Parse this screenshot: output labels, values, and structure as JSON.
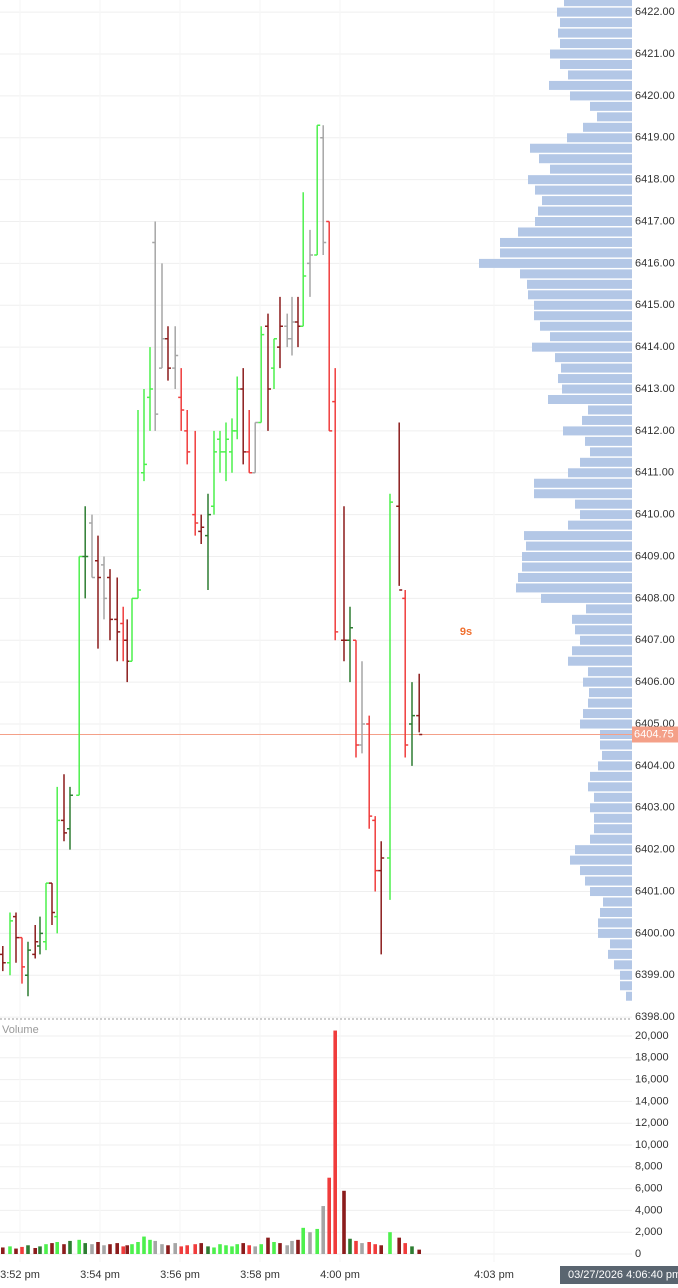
{
  "chart_data": {
    "type": "ohlc",
    "xlim": [
      -0.5,
      15.3
    ],
    "xticks": [
      {
        "value": 0,
        "label": "3:52 pm"
      },
      {
        "value": 2,
        "label": "3:54 pm"
      },
      {
        "value": 4,
        "label": "3:56 pm"
      },
      {
        "value": 6,
        "label": "3:58 pm"
      },
      {
        "value": 8,
        "label": "4:00 pm"
      },
      {
        "value": 11.85,
        "label": "4:03 pm"
      }
    ],
    "ylim": [
      6397.98,
      6422.29
    ],
    "yticks": [
      {
        "value": 6398,
        "label": "6398.00"
      },
      {
        "value": 6399,
        "label": "6399.00"
      },
      {
        "value": 6400,
        "label": "6400.00"
      },
      {
        "value": 6401,
        "label": "6401.00"
      },
      {
        "value": 6402,
        "label": "6402.00"
      },
      {
        "value": 6403,
        "label": "6403.00"
      },
      {
        "value": 6404,
        "label": "6404.00"
      },
      {
        "value": 6405,
        "label": "6405.00"
      },
      {
        "value": 6406,
        "label": "6406.00"
      },
      {
        "value": 6407,
        "label": "6407.00"
      },
      {
        "value": 6408,
        "label": "6408.00"
      },
      {
        "value": 6409,
        "label": "6409.00"
      },
      {
        "value": 6410,
        "label": "6410.00"
      },
      {
        "value": 6411,
        "label": "6411.00"
      },
      {
        "value": 6412,
        "label": "6412.00"
      },
      {
        "value": 6413,
        "label": "6413.00"
      },
      {
        "value": 6414,
        "label": "6414.00"
      },
      {
        "value": 6415,
        "label": "6415.00"
      },
      {
        "value": 6416,
        "label": "6416.00"
      },
      {
        "value": 6417,
        "label": "6417.00"
      },
      {
        "value": 6418,
        "label": "6418.00"
      },
      {
        "value": 6419,
        "label": "6419.00"
      },
      {
        "value": 6420,
        "label": "6420.00"
      },
      {
        "value": 6421,
        "label": "6421.00"
      },
      {
        "value": 6422,
        "label": "6422.00"
      }
    ],
    "grid": true,
    "last_price": 6404.75,
    "last_price_color": "#f4a088",
    "countdown": "9s",
    "cursor_time": "03/27/2026 4:06:40 pm",
    "bars": {
      "x": [
        -0.43,
        -0.25,
        -0.1,
        0.05,
        0.2,
        0.38,
        0.5,
        0.65,
        0.8,
        0.93,
        1.1,
        1.25,
        1.48,
        1.63,
        1.8,
        1.95,
        2.1,
        2.25,
        2.43,
        2.58,
        2.68,
        2.8,
        2.95,
        3.1,
        3.25,
        3.38,
        3.55,
        3.7,
        3.88,
        4.03,
        4.18,
        4.38,
        4.53,
        4.7,
        4.85,
        5,
        5.15,
        5.3,
        5.43,
        5.58,
        5.73,
        5.88,
        6.03,
        6.2,
        6.35,
        6.5,
        6.68,
        6.8,
        6.95,
        7.08,
        7.25,
        7.43,
        7.58,
        7.73,
        7.88,
        8.1,
        8.25,
        8.4,
        8.55,
        8.73,
        8.88,
        9.03,
        9.25,
        9.48,
        9.63,
        9.8,
        9.98
      ],
      "open": [
        6399.5,
        6399.3,
        6400.4,
        6399.9,
        6399.0,
        6399.5,
        6399.7,
        6399.8,
        6401.2,
        6400.4,
        6402.7,
        6402.5,
        6403.3,
        6409.0,
        6409.8,
        6408.9,
        6408.8,
        6408.5,
        6407.5,
        6407.4,
        6407.0,
        6406.5,
        6408.0,
        6411.0,
        6412.8,
        6416.5,
        6413.5,
        6414.2,
        6413.5,
        6412.8,
        6412.0,
        6410.0,
        6409.6,
        6409.5,
        6410.2,
        6411.8,
        6411.5,
        6411.5,
        6412.0,
        6413.0,
        6411.5,
        6411.0,
        6412.2,
        6414.5,
        6413.5,
        6414.0,
        6414.5,
        6414.2,
        6414.6,
        6414.5,
        6416.0,
        6416.2,
        6419.0,
        6417.0,
        6412.7,
        6407.0,
        6407.0,
        6407.0,
        6404.5,
        6405.0,
        6402.7,
        6401.5,
        6401.8,
        6410.2,
        6408.0,
        6405.0,
        6405.2
      ],
      "high": [
        6399.7,
        6400.5,
        6400.5,
        6399.9,
        6399.8,
        6400.2,
        6400.4,
        6401.2,
        6401.2,
        6403.5,
        6403.8,
        6403.5,
        6409.0,
        6410.2,
        6410.0,
        6409.5,
        6409.0,
        6408.7,
        6408.5,
        6407.8,
        6407.5,
        6408.0,
        6412.5,
        6413.0,
        6414.0,
        6417.0,
        6416.0,
        6414.5,
        6414.5,
        6413.5,
        6412.5,
        6412.0,
        6410.0,
        6410.5,
        6412.0,
        6412.0,
        6412.2,
        6412.3,
        6413.3,
        6413.5,
        6412.5,
        6412.2,
        6414.5,
        6414.8,
        6414.2,
        6415.2,
        6414.8,
        6415.2,
        6415.2,
        6417.7,
        6416.8,
        6419.3,
        6419.3,
        6417.0,
        6413.5,
        6410.2,
        6407.8,
        6407.0,
        6406.5,
        6405.2,
        6402.8,
        6402.2,
        6410.5,
        6412.2,
        6408.2,
        6406.0,
        6406.2
      ],
      "low": [
        6399.1,
        6399.0,
        6399.3,
        6398.8,
        6398.5,
        6399.4,
        6399.5,
        6399.6,
        6400.2,
        6400.0,
        6402.2,
        6402.0,
        6403.3,
        6408.0,
        6408.5,
        6406.8,
        6407.5,
        6407.0,
        6406.5,
        6406.5,
        6406.0,
        6406.5,
        6408.0,
        6410.8,
        6412.0,
        6412.0,
        6413.5,
        6413.2,
        6413.0,
        6412.0,
        6411.2,
        6409.5,
        6409.3,
        6408.2,
        6410.0,
        6411.0,
        6410.8,
        6411.0,
        6411.8,
        6411.2,
        6411.0,
        6411.0,
        6412.2,
        6412.0,
        6413.0,
        6413.5,
        6414.0,
        6413.8,
        6414.0,
        6414.5,
        6415.2,
        6416.2,
        6416.2,
        6412.0,
        6407.0,
        6406.5,
        6406.0,
        6404.2,
        6404.3,
        6402.5,
        6401.0,
        6399.5,
        6400.8,
        6408.3,
        6404.2,
        6404.0,
        6404.8
      ],
      "close": [
        6399.3,
        6400.3,
        6399.9,
        6399.2,
        6399.6,
        6399.8,
        6400.0,
        6401.2,
        6400.5,
        6402.7,
        6402.4,
        6403.3,
        6409.0,
        6409.0,
        6408.5,
        6408.5,
        6408.0,
        6407.5,
        6407.2,
        6407.0,
        6406.5,
        6408.0,
        6408.2,
        6411.2,
        6413.0,
        6412.4,
        6414.2,
        6413.5,
        6413.8,
        6412.5,
        6411.5,
        6409.8,
        6409.7,
        6410.0,
        6411.5,
        6411.5,
        6411.8,
        6412.0,
        6413.0,
        6411.5,
        6411.0,
        6412.2,
        6414.3,
        6413.0,
        6414.2,
        6414.5,
        6414.2,
        6414.6,
        6414.5,
        6415.7,
        6416.2,
        6419.3,
        6416.5,
        6412.0,
        6407.2,
        6407.0,
        6407.3,
        6404.5,
        6405.0,
        6402.8,
        6401.5,
        6401.8,
        6410.3,
        6408.2,
        6404.5,
        6405.2,
        6404.75
      ],
      "colors": [
        "#8b1c1c",
        "#4df04d",
        "#8b1c1c",
        "#f03c3c",
        "#2e7d32",
        "#8b1c1c",
        "#2e7d32",
        "#4df04d",
        "#8b1c1c",
        "#4df04d",
        "#8b1c1c",
        "#2e7d32",
        "#4df04d",
        "#2e7d32",
        "#a6a6a6",
        "#8b1c1c",
        "#a6a6a6",
        "#8b1c1c",
        "#8b1c1c",
        "#f03c3c",
        "#8b1c1c",
        "#4df04d",
        "#4df04d",
        "#4df04d",
        "#4df04d",
        "#a6a6a6",
        "#a6a6a6",
        "#8b1c1c",
        "#a6a6a6",
        "#f03c3c",
        "#f03c3c",
        "#f03c3c",
        "#8b1c1c",
        "#2e7d32",
        "#4df04d",
        "#4df04d",
        "#4df04d",
        "#4df04d",
        "#4df04d",
        "#8b1c1c",
        "#f03c3c",
        "#a6a6a6",
        "#4df04d",
        "#8b1c1c",
        "#4df04d",
        "#8b1c1c",
        "#a6a6a6",
        "#a6a6a6",
        "#8b1c1c",
        "#4df04d",
        "#a6a6a6",
        "#4df04d",
        "#a6a6a6",
        "#f03c3c",
        "#f03c3c",
        "#8b1c1c",
        "#2e7d32",
        "#f03c3c",
        "#a6a6a6",
        "#f03c3c",
        "#f03c3c",
        "#8b1c1c",
        "#4df04d",
        "#8b1c1c",
        "#f03c3c",
        "#2e7d32",
        "#8b1c1c"
      ]
    },
    "volume": {
      "label": "Volume",
      "values": [
        600,
        700,
        500,
        650,
        800,
        550,
        700,
        900,
        1000,
        1100,
        900,
        1200,
        1300,
        1000,
        900,
        1100,
        800,
        900,
        1000,
        700,
        800,
        900,
        1100,
        1600,
        1300,
        1200,
        900,
        800,
        1000,
        700,
        800,
        900,
        1000,
        700,
        600,
        900,
        800,
        700,
        900,
        1000,
        800,
        700,
        900,
        1500,
        1100,
        1000,
        800,
        1200,
        1300,
        2400,
        2000,
        2300,
        4400,
        7000,
        20500,
        5800,
        1400,
        1200,
        1000,
        1100,
        900,
        800,
        2000,
        1500,
        1000,
        700,
        400
      ],
      "ylim": [
        -734,
        21468
      ],
      "yticks": [
        0,
        {
          "value": 2000,
          "label": "2,000"
        },
        {
          "value": 4000,
          "label": "4,000"
        },
        {
          "value": 6000,
          "label": "6,000"
        },
        {
          "value": 8000,
          "label": "8,000"
        },
        {
          "value": 10000,
          "label": "10,000"
        },
        {
          "value": 12000,
          "label": "12,000"
        },
        {
          "value": 14000,
          "label": "14,000"
        },
        {
          "value": 16000,
          "label": "16,000"
        },
        {
          "value": 18000,
          "label": "18,000"
        },
        {
          "value": 20000,
          "label": "20,000"
        }
      ]
    },
    "profile": {
      "color": "#b3c7e6",
      "xlim": [
        0,
        160
      ],
      "prices": [
        6422.25,
        6422,
        6421.75,
        6421.5,
        6421.25,
        6421,
        6420.75,
        6420.5,
        6420.25,
        6420,
        6419.75,
        6419.5,
        6419.25,
        6419,
        6418.75,
        6418.5,
        6418.25,
        6418,
        6417.75,
        6417.5,
        6417.25,
        6417,
        6416.75,
        6416.5,
        6416.25,
        6416,
        6415.75,
        6415.5,
        6415.25,
        6415,
        6414.75,
        6414.5,
        6414.25,
        6414,
        6413.75,
        6413.5,
        6413.25,
        6413,
        6412.75,
        6412.5,
        6412.25,
        6412,
        6411.75,
        6411.5,
        6411.25,
        6411,
        6410.75,
        6410.5,
        6410.25,
        6410,
        6409.75,
        6409.5,
        6409.25,
        6409,
        6408.75,
        6408.5,
        6408.25,
        6408,
        6407.75,
        6407.5,
        6407.25,
        6407,
        6406.75,
        6406.5,
        6406.25,
        6406,
        6405.75,
        6405.5,
        6405.25,
        6405,
        6404.75,
        6404.5,
        6404.25,
        6404,
        6403.75,
        6403.5,
        6403.25,
        6403,
        6402.75,
        6402.5,
        6402.25,
        6402,
        6401.75,
        6401.5,
        6401.25,
        6401,
        6400.75,
        6400.5,
        6400.25,
        6400,
        6399.75,
        6399.5,
        6399.25,
        6399,
        6398.75,
        6398.5
      ],
      "values": [
        68,
        75,
        72,
        74,
        72,
        82,
        72,
        64,
        83,
        62,
        42,
        35,
        49,
        65,
        102,
        93,
        82,
        104,
        97,
        90,
        94,
        97,
        114,
        132,
        132,
        153,
        112,
        105,
        104,
        98,
        98,
        92,
        82,
        100,
        77,
        71,
        74,
        70,
        84,
        44,
        50,
        69,
        47,
        42,
        52,
        64,
        98,
        98,
        57,
        52,
        64,
        108,
        106,
        110,
        110,
        114,
        116,
        91,
        46,
        60,
        57,
        52,
        60,
        64,
        44,
        49,
        43,
        44,
        49,
        52,
        32,
        32,
        30,
        34,
        42,
        44,
        38,
        42,
        38,
        38,
        42,
        57,
        62,
        52,
        47,
        42,
        29,
        32,
        34,
        34,
        22,
        24,
        18,
        12,
        12,
        6
      ]
    }
  }
}
